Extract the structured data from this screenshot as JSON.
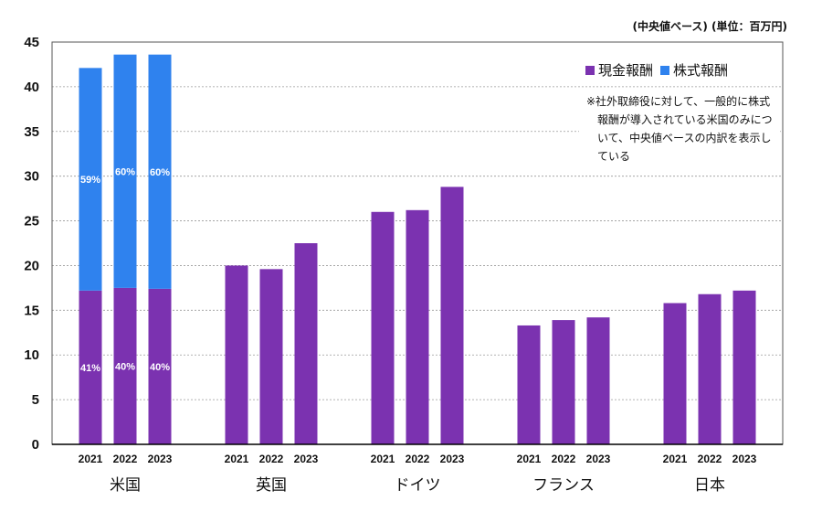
{
  "unit_note": "(中央値ベース) (単位：百万円)",
  "note": "※社外取締役に対して、一般的に株式報酬が導入されている米国のみについて、中央値ベースの内訳を表示している",
  "colors": {
    "cash": "#7B32B0",
    "stock": "#2F82EE"
  },
  "chart_data": {
    "type": "bar",
    "stacked": true,
    "ylim": [
      0,
      45
    ],
    "yticks": [
      "0",
      "5",
      "10",
      "15",
      "20",
      "25",
      "30",
      "35",
      "40",
      "45"
    ],
    "grid": true,
    "legend": [
      "現金報酬",
      "株式報酬"
    ],
    "groups": [
      {
        "name": "米国",
        "years": [
          "2021",
          "2022",
          "2023"
        ],
        "cash": [
          17.2,
          17.5,
          17.4
        ],
        "stock": [
          24.9,
          26.1,
          26.2
        ],
        "cash_pct": [
          "41%",
          "40%",
          "40%"
        ],
        "stock_pct": [
          "59%",
          "60%",
          "60%"
        ]
      },
      {
        "name": "英国",
        "years": [
          "2021",
          "2022",
          "2023"
        ],
        "cash": [
          20.0,
          19.6,
          22.5
        ]
      },
      {
        "name": "ドイツ",
        "years": [
          "2021",
          "2022",
          "2023"
        ],
        "cash": [
          26.0,
          26.2,
          28.8
        ]
      },
      {
        "name": "フランス",
        "years": [
          "2021",
          "2022",
          "2023"
        ],
        "cash": [
          13.3,
          13.9,
          14.2
        ]
      },
      {
        "name": "日本",
        "years": [
          "2021",
          "2022",
          "2023"
        ],
        "cash": [
          15.8,
          16.8,
          17.2
        ]
      }
    ]
  }
}
